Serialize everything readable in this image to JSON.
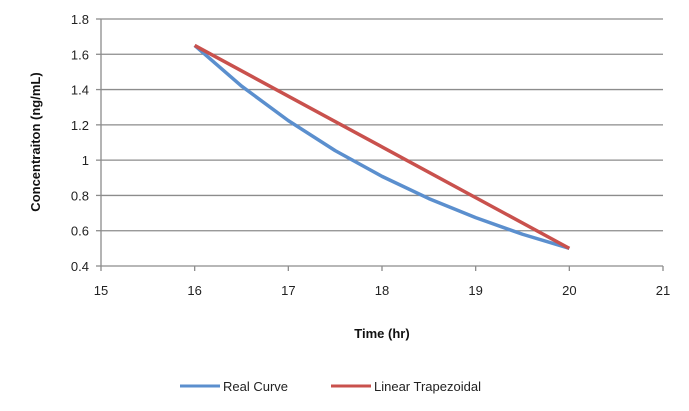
{
  "chart_data": {
    "type": "line",
    "title": "",
    "xlabel": "Time (hr)",
    "ylabel": "Concentraiton (ng/mL)",
    "xlim": [
      15,
      21
    ],
    "ylim": [
      0.4,
      1.8
    ],
    "xticks": [
      15,
      16,
      17,
      18,
      19,
      20,
      21
    ],
    "yticks": [
      0.4,
      0.6,
      0.8,
      1,
      1.2,
      1.4,
      1.6,
      1.8
    ],
    "grid": "horizontal",
    "legend_position": "bottom",
    "series": [
      {
        "name": "Real Curve",
        "color": "#5b8fce",
        "x": [
          16,
          16.5,
          17,
          17.5,
          18,
          18.5,
          19,
          19.5,
          20
        ],
        "y": [
          1.65,
          1.42,
          1.224,
          1.054,
          0.908,
          0.782,
          0.674,
          0.58,
          0.5
        ]
      },
      {
        "name": "Linear Trapezoidal",
        "color": "#c9514d",
        "x": [
          16,
          20
        ],
        "y": [
          1.65,
          0.5
        ]
      }
    ]
  }
}
